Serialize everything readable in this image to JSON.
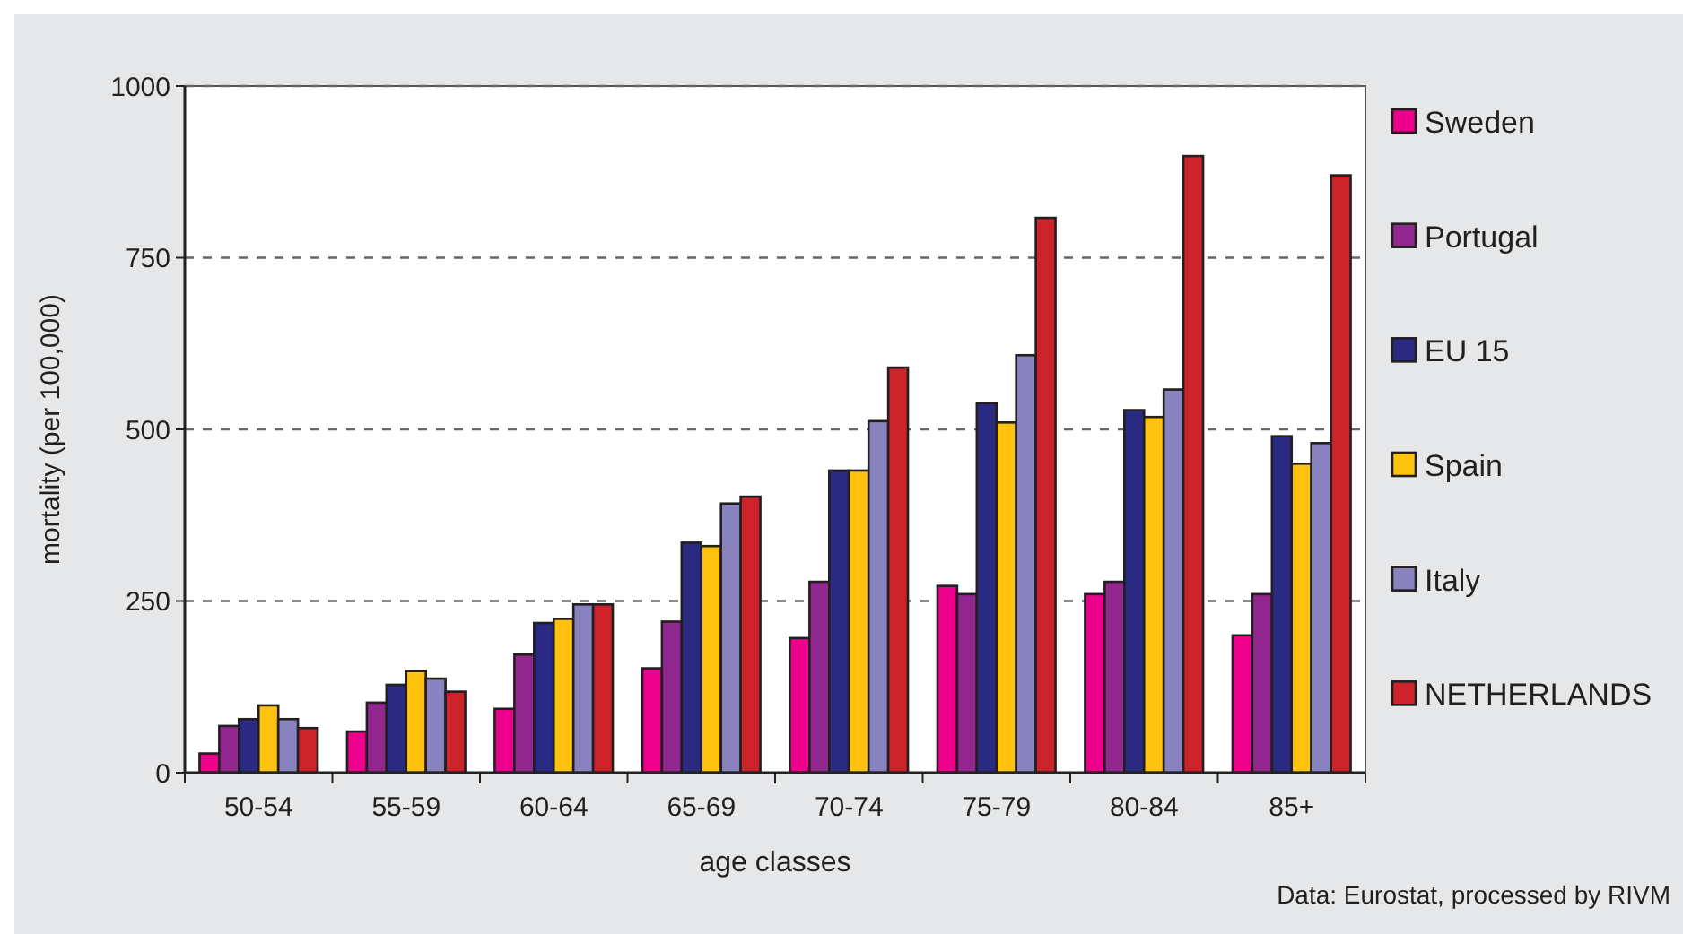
{
  "chart_data": {
    "type": "bar",
    "xlabel": "age classes",
    "ylabel": "mortality (per 100,000)",
    "categories": [
      "50-54",
      "55-59",
      "60-64",
      "65-69",
      "70-74",
      "75-79",
      "80-84",
      "85+"
    ],
    "series": [
      {
        "name": "Sweden",
        "color": "#ec008c",
        "values": [
          28,
          60,
          93,
          152,
          196,
          272,
          260,
          200
        ]
      },
      {
        "name": "Portugal",
        "color": "#92278f",
        "values": [
          68,
          102,
          172,
          220,
          278,
          260,
          278,
          260
        ]
      },
      {
        "name": "EU 15",
        "color": "#2b2a82",
        "values": [
          78,
          128,
          218,
          335,
          440,
          538,
          528,
          490
        ]
      },
      {
        "name": "Spain",
        "color": "#ffc20e",
        "values": [
          98,
          148,
          224,
          330,
          440,
          510,
          518,
          450
        ]
      },
      {
        "name": "Italy",
        "color": "#8882bf",
        "values": [
          78,
          137,
          245,
          392,
          512,
          608,
          558,
          480
        ]
      },
      {
        "name": "NETHERLANDS",
        "color": "#cc2229",
        "values": [
          65,
          118,
          245,
          402,
          590,
          808,
          898,
          870
        ]
      }
    ],
    "ylim": [
      0,
      1000
    ],
    "yticks": [
      0,
      250,
      500,
      750,
      1000
    ],
    "grid": "y",
    "legend": "right",
    "annotations": [
      "Data: Eurostat, processed by RIVM"
    ]
  }
}
